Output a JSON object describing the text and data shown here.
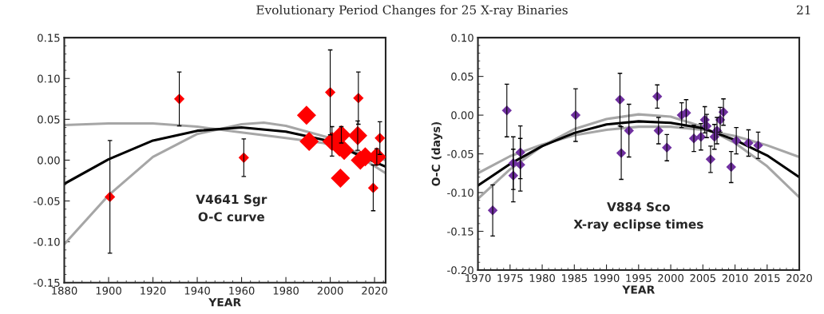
{
  "chart_data": [
    {
      "type": "bubble",
      "xlabel": "YEAR",
      "annotations": [
        "Evolutionary Period Changes for 25 X-ray Binaries",
        "21",
        "V4641 Sgr\nO-C curve"
      ],
      "xlim": [
        1880,
        2025
      ],
      "xticks": [
        1880,
        1900,
        1920,
        1940,
        1960,
        1980,
        2000,
        2020
      ],
      "ylim": [
        -0.15,
        0.15
      ],
      "yticks": [
        {
          "value": -0.15,
          "label": "-0.15"
        },
        {
          "value": -0.1,
          "label": "-0.10"
        },
        {
          "value": -0.05,
          "label": "-0.05"
        },
        {
          "value": 0,
          "label": "0.00"
        },
        {
          "value": 0.05,
          "label": "0.05"
        },
        {
          "value": 0.1,
          "label": "0.10"
        },
        {
          "value": 0.15,
          "label": "0.15"
        }
      ],
      "grid": false,
      "legend": false,
      "series": [
        {
          "type": "line",
          "color": "#a6a6a6",
          "x": [
            1880,
            1900,
            1920,
            1940,
            1960,
            1980,
            1997,
            2025
          ],
          "values": [
            0.043,
            0.045,
            0.045,
            0.041,
            0.034,
            0.027,
            0.021,
            0.0
          ]
        },
        {
          "type": "line",
          "color": "#a6a6a6",
          "x": [
            1880,
            1900,
            1920,
            1940,
            1960,
            1970,
            1980,
            2000,
            2025
          ],
          "values": [
            -0.103,
            -0.043,
            0.004,
            0.032,
            0.044,
            0.046,
            0.042,
            0.027,
            -0.016
          ]
        },
        {
          "type": "line",
          "color": "#000000",
          "x": [
            1880,
            1900,
            1920,
            1940,
            1960,
            1980,
            1997,
            2025
          ],
          "values": [
            -0.029,
            0.001,
            0.024,
            0.036,
            0.04,
            0.035,
            0.025,
            -0.008
          ]
        },
        {
          "marker": "diamond",
          "color": "#ff0000",
          "x": [
            1900.6,
            1931.9,
            1961,
            2000,
            2012.7,
            2022.4,
            2019.4,
            1989.3,
            1990.5,
            2000.8,
            2005,
            2004.2,
            2006.3,
            2004.6,
            2012.4,
            2013.6,
            2015.8,
            2021
          ],
          "values": [
            -0.045,
            0.075,
            0.003,
            0.083,
            0.076,
            0.027,
            -0.034,
            0.055,
            0.023,
            0.023,
            0.031,
            0.016,
            0.012,
            -0.022,
            0.03,
            0.0,
            0.004,
            0.004
          ],
          "errors": [
            0.069,
            0.033,
            0.023,
            0.052,
            0.032,
            0.02,
            0.028,
            null,
            null,
            0.018,
            0.01,
            null,
            null,
            null,
            0.018,
            null,
            null,
            0.01
          ],
          "sizes": [
            0.3,
            0.3,
            0.3,
            0.3,
            0.3,
            0.3,
            0.3,
            1,
            1,
            1,
            1,
            1,
            1,
            1,
            1,
            1,
            1,
            1
          ]
        }
      ]
    },
    {
      "type": "scatter",
      "xlabel": "YEAR",
      "ylabel": "O-C (days)",
      "annotations": [
        "V884 Sco\nX-ray eclipse times"
      ],
      "xlim": [
        1970,
        2020
      ],
      "xticks": [
        1970,
        1975,
        1980,
        1985,
        1990,
        1995,
        2000,
        2005,
        2010,
        2015,
        2020
      ],
      "ylim": [
        -0.2,
        0.1
      ],
      "yticks": [
        {
          "value": -0.2,
          "label": "-0.20"
        },
        {
          "value": -0.15,
          "label": "-0.15"
        },
        {
          "value": -0.1,
          "label": "-0.10"
        },
        {
          "value": -0.05,
          "label": "-0.05"
        },
        {
          "value": 0,
          "label": "0.00"
        },
        {
          "value": 0.05,
          "label": "0.05"
        },
        {
          "value": 0.1,
          "label": "0.10"
        }
      ],
      "grid": false,
      "legend": false,
      "series": [
        {
          "type": "line",
          "color": "#a6a6a6",
          "x": [
            1970,
            1975,
            1980,
            1985,
            1990,
            1995,
            2000,
            2005,
            2010,
            2015,
            2020
          ],
          "values": [
            -0.108,
            -0.07,
            -0.04,
            -0.018,
            -0.005,
            0.001,
            -0.002,
            -0.015,
            -0.036,
            -0.066,
            -0.106
          ]
        },
        {
          "type": "line",
          "color": "#a6a6a6",
          "x": [
            1970,
            1975,
            1980,
            1985,
            1990,
            1995,
            2000,
            2005,
            2010,
            2015,
            2020
          ],
          "values": [
            -0.075,
            -0.053,
            -0.038,
            -0.026,
            -0.019,
            -0.015,
            -0.015,
            -0.019,
            -0.027,
            -0.039,
            -0.054
          ]
        },
        {
          "type": "line",
          "color": "#000000",
          "x": [
            1970,
            1975,
            1980,
            1985,
            1990,
            1995,
            2000,
            2005,
            2010,
            2015,
            2020
          ],
          "values": [
            -0.091,
            -0.063,
            -0.04,
            -0.023,
            -0.012,
            -0.008,
            -0.01,
            -0.017,
            -0.032,
            -0.052,
            -0.08
          ]
        },
        {
          "marker": "diamond",
          "color": "#7030a0",
          "x": [
            1972.3,
            1974.5,
            1975.5,
            1975.5,
            1976.6,
            1976.6,
            1985.2,
            1992.1,
            1992.3,
            1993.5,
            1997.9,
            1998.1,
            1999.4,
            2001.7,
            2002.4,
            2003.6,
            2004.7,
            2005.3,
            2005.6,
            2006.2,
            2006.8,
            2007.2,
            2007.7,
            2008.2,
            2009.4,
            2010.2,
            2012.1,
            2013.6
          ],
          "values": [
            -0.123,
            0.006,
            -0.062,
            -0.078,
            -0.048,
            -0.064,
            0.0,
            0.02,
            -0.049,
            -0.02,
            0.024,
            -0.02,
            -0.042,
            0.0,
            0.003,
            -0.03,
            -0.028,
            -0.006,
            -0.014,
            -0.057,
            -0.028,
            -0.02,
            -0.006,
            0.004,
            -0.067,
            -0.033,
            -0.036,
            -0.039
          ],
          "errors": [
            0.033,
            0.034,
            0.034,
            0.034,
            0.034,
            0.034,
            0.034,
            0.034,
            0.034,
            0.034,
            0.015,
            0.017,
            0.017,
            0.016,
            0.017,
            0.017,
            0.017,
            0.017,
            0.015,
            0.017,
            0.016,
            0.017,
            0.016,
            0.017,
            0.02,
            0.017,
            0.017,
            0.017
          ]
        }
      ]
    }
  ]
}
